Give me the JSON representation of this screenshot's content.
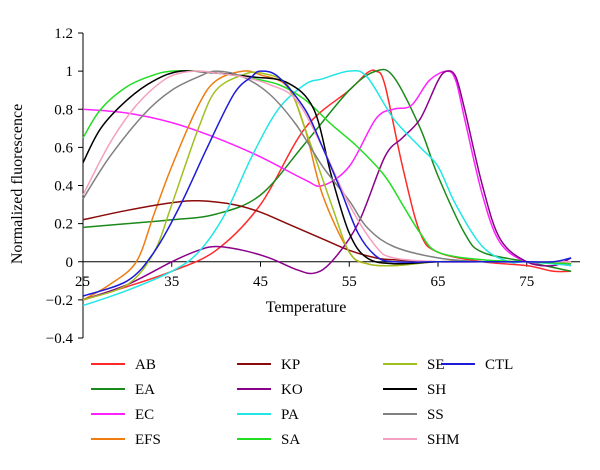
{
  "chart_data": {
    "type": "line",
    "title": "",
    "xlabel": "Temperature",
    "ylabel": "Normalized fluorescence",
    "xlim": [
      25,
      81
    ],
    "ylim": [
      -0.4,
      1.2
    ],
    "xticks": [
      "25",
      "35",
      "45",
      "55",
      "65",
      "75"
    ],
    "xtick_values": [
      25,
      35,
      45,
      55,
      65,
      75
    ],
    "yticks": [
      "1.2",
      "1",
      "0.8",
      "0.6",
      "0.4",
      "0.2",
      "0",
      "−0.2",
      "−0.4"
    ],
    "ytick_values": [
      1.2,
      1,
      0.8,
      0.6,
      0.4,
      0.2,
      0,
      -0.2,
      -0.4
    ],
    "grid": false,
    "legend_position": "bottom",
    "series": [
      {
        "name": "AB",
        "color": "#ff2a2a",
        "points": [
          [
            25,
            -0.2
          ],
          [
            30,
            -0.13
          ],
          [
            35,
            -0.05
          ],
          [
            40,
            0.06
          ],
          [
            45,
            0.3
          ],
          [
            50,
            0.7
          ],
          [
            55,
            0.9
          ],
          [
            57,
            0.99
          ],
          [
            58,
            1.0
          ],
          [
            59,
            0.93
          ],
          [
            61,
            0.5
          ],
          [
            63,
            0.15
          ],
          [
            65,
            0.05
          ],
          [
            70,
            0.0
          ],
          [
            75,
            -0.02
          ],
          [
            78,
            -0.05
          ],
          [
            80,
            -0.05
          ]
        ]
      },
      {
        "name": "EA",
        "color": "#1a8a1a",
        "points": [
          [
            25,
            0.18
          ],
          [
            30,
            0.2
          ],
          [
            35,
            0.22
          ],
          [
            40,
            0.25
          ],
          [
            45,
            0.35
          ],
          [
            50,
            0.62
          ],
          [
            55,
            0.9
          ],
          [
            58,
            1.0
          ],
          [
            60,
            0.97
          ],
          [
            63,
            0.7
          ],
          [
            65,
            0.45
          ],
          [
            68,
            0.15
          ],
          [
            70,
            0.05
          ],
          [
            75,
            0.0
          ],
          [
            78,
            -0.03
          ],
          [
            80,
            -0.05
          ]
        ]
      },
      {
        "name": "EC",
        "color": "#ff22ff",
        "points": [
          [
            25,
            0.8
          ],
          [
            30,
            0.78
          ],
          [
            35,
            0.73
          ],
          [
            40,
            0.65
          ],
          [
            45,
            0.55
          ],
          [
            50,
            0.43
          ],
          [
            52,
            0.4
          ],
          [
            55,
            0.5
          ],
          [
            58,
            0.75
          ],
          [
            60,
            0.8
          ],
          [
            62,
            0.82
          ],
          [
            64,
            0.95
          ],
          [
            66,
            1.0
          ],
          [
            67,
            0.95
          ],
          [
            68,
            0.75
          ],
          [
            70,
            0.35
          ],
          [
            72,
            0.1
          ],
          [
            75,
            0.0
          ],
          [
            78,
            0.0
          ],
          [
            80,
            -0.02
          ]
        ]
      },
      {
        "name": "EFS",
        "color": "#f07c10",
        "points": [
          [
            25,
            -0.2
          ],
          [
            28,
            -0.12
          ],
          [
            31,
            0.0
          ],
          [
            33,
            0.25
          ],
          [
            35,
            0.5
          ],
          [
            38,
            0.82
          ],
          [
            40,
            0.95
          ],
          [
            43,
            1.0
          ],
          [
            45,
            0.98
          ],
          [
            48,
            0.92
          ],
          [
            50,
            0.7
          ],
          [
            52,
            0.35
          ],
          [
            55,
            0.05
          ],
          [
            57,
            -0.01
          ],
          [
            60,
            -0.02
          ],
          [
            65,
            0.0
          ],
          [
            70,
            0.0
          ],
          [
            75,
            0.0
          ],
          [
            80,
            -0.01
          ]
        ]
      },
      {
        "name": "KP",
        "color": "#8b0a0a",
        "points": [
          [
            25,
            0.22
          ],
          [
            30,
            0.27
          ],
          [
            35,
            0.31
          ],
          [
            38,
            0.32
          ],
          [
            42,
            0.3
          ],
          [
            45,
            0.26
          ],
          [
            48,
            0.2
          ],
          [
            52,
            0.12
          ],
          [
            55,
            0.06
          ],
          [
            58,
            0.02
          ],
          [
            60,
            0.01
          ],
          [
            65,
            0.0
          ],
          [
            70,
            0.0
          ],
          [
            75,
            0.0
          ],
          [
            80,
            0.0
          ]
        ]
      },
      {
        "name": "KO",
        "color": "#8b008b",
        "points": [
          [
            25,
            -0.2
          ],
          [
            30,
            -0.12
          ],
          [
            35,
            0.0
          ],
          [
            38,
            0.06
          ],
          [
            40,
            0.08
          ],
          [
            43,
            0.06
          ],
          [
            46,
            0.02
          ],
          [
            49,
            -0.04
          ],
          [
            51,
            -0.06
          ],
          [
            53,
            0.0
          ],
          [
            56,
            0.2
          ],
          [
            59,
            0.55
          ],
          [
            61,
            0.65
          ],
          [
            63,
            0.75
          ],
          [
            65,
            0.95
          ],
          [
            66,
            1.0
          ],
          [
            67,
            0.97
          ],
          [
            68,
            0.8
          ],
          [
            70,
            0.4
          ],
          [
            72,
            0.12
          ],
          [
            75,
            0.0
          ],
          [
            78,
            -0.02
          ],
          [
            80,
            0.02
          ]
        ]
      },
      {
        "name": "PA",
        "color": "#22e6e6",
        "points": [
          [
            25,
            -0.23
          ],
          [
            30,
            -0.15
          ],
          [
            35,
            -0.05
          ],
          [
            38,
            0.05
          ],
          [
            41,
            0.25
          ],
          [
            44,
            0.55
          ],
          [
            47,
            0.8
          ],
          [
            50,
            0.93
          ],
          [
            52,
            0.96
          ],
          [
            55,
            1.0
          ],
          [
            57,
            0.97
          ],
          [
            60,
            0.75
          ],
          [
            63,
            0.6
          ],
          [
            65,
            0.5
          ],
          [
            67,
            0.3
          ],
          [
            70,
            0.08
          ],
          [
            73,
            0.0
          ],
          [
            75,
            0.0
          ],
          [
            80,
            -0.02
          ]
        ]
      },
      {
        "name": "SA",
        "color": "#22dd22",
        "points": [
          [
            25,
            0.65
          ],
          [
            27,
            0.8
          ],
          [
            30,
            0.92
          ],
          [
            33,
            0.98
          ],
          [
            35,
            1.0
          ],
          [
            38,
            1.0
          ],
          [
            40,
            0.99
          ],
          [
            43,
            0.97
          ],
          [
            47,
            0.93
          ],
          [
            50,
            0.85
          ],
          [
            53,
            0.72
          ],
          [
            56,
            0.6
          ],
          [
            59,
            0.45
          ],
          [
            61,
            0.3
          ],
          [
            63,
            0.15
          ],
          [
            65,
            0.05
          ],
          [
            70,
            0.01
          ],
          [
            75,
            0.0
          ],
          [
            80,
            -0.01
          ]
        ]
      },
      {
        "name": "SE",
        "color": "#a0c020",
        "points": [
          [
            25,
            -0.2
          ],
          [
            30,
            -0.12
          ],
          [
            33,
            0.05
          ],
          [
            35,
            0.3
          ],
          [
            38,
            0.7
          ],
          [
            40,
            0.9
          ],
          [
            43,
            0.98
          ],
          [
            45,
            0.99
          ],
          [
            48,
            0.93
          ],
          [
            50,
            0.7
          ],
          [
            53,
            0.3
          ],
          [
            55,
            0.05
          ],
          [
            57,
            -0.01
          ],
          [
            60,
            -0.02
          ],
          [
            65,
            0.0
          ],
          [
            70,
            0.0
          ],
          [
            75,
            0.0
          ],
          [
            80,
            0.0
          ]
        ]
      },
      {
        "name": "SH",
        "color": "#000000",
        "points": [
          [
            25,
            0.52
          ],
          [
            27,
            0.7
          ],
          [
            30,
            0.85
          ],
          [
            33,
            0.95
          ],
          [
            36,
            1.0
          ],
          [
            40,
            0.99
          ],
          [
            44,
            0.97
          ],
          [
            48,
            0.94
          ],
          [
            51,
            0.8
          ],
          [
            53,
            0.45
          ],
          [
            55,
            0.15
          ],
          [
            57,
            0.02
          ],
          [
            60,
            -0.01
          ],
          [
            65,
            0.0
          ],
          [
            70,
            0.0
          ],
          [
            75,
            0.0
          ],
          [
            80,
            0.0
          ]
        ]
      },
      {
        "name": "SS",
        "color": "#808080",
        "points": [
          [
            25,
            0.33
          ],
          [
            28,
            0.55
          ],
          [
            32,
            0.78
          ],
          [
            35,
            0.9
          ],
          [
            38,
            0.97
          ],
          [
            40,
            1.0
          ],
          [
            43,
            0.97
          ],
          [
            46,
            0.88
          ],
          [
            49,
            0.72
          ],
          [
            52,
            0.5
          ],
          [
            55,
            0.32
          ],
          [
            57,
            0.18
          ],
          [
            60,
            0.08
          ],
          [
            65,
            0.02
          ],
          [
            70,
            0.0
          ],
          [
            75,
            0.0
          ],
          [
            80,
            0.0
          ]
        ]
      },
      {
        "name": "SHM",
        "color": "#f4a0c0",
        "points": [
          [
            25,
            0.35
          ],
          [
            28,
            0.62
          ],
          [
            31,
            0.82
          ],
          [
            34,
            0.95
          ],
          [
            36,
            0.99
          ],
          [
            38,
            1.0
          ],
          [
            40,
            0.99
          ],
          [
            43,
            0.97
          ],
          [
            46,
            0.93
          ],
          [
            49,
            0.85
          ],
          [
            52,
            0.6
          ],
          [
            55,
            0.3
          ],
          [
            58,
            0.08
          ],
          [
            60,
            0.02
          ],
          [
            65,
            0.0
          ],
          [
            70,
            0.0
          ],
          [
            75,
            0.0
          ],
          [
            80,
            0.0
          ]
        ]
      },
      {
        "name": "CTL",
        "color": "#1c1cd8",
        "points": [
          [
            25,
            -0.18
          ],
          [
            30,
            -0.1
          ],
          [
            33,
            0.05
          ],
          [
            36,
            0.3
          ],
          [
            39,
            0.6
          ],
          [
            42,
            0.88
          ],
          [
            44,
            0.97
          ],
          [
            45,
            1.0
          ],
          [
            47,
            0.97
          ],
          [
            50,
            0.8
          ],
          [
            52,
            0.6
          ],
          [
            54,
            0.38
          ],
          [
            56,
            0.15
          ],
          [
            58,
            0.03
          ],
          [
            60,
            0.0
          ],
          [
            65,
            0.0
          ],
          [
            70,
            0.0
          ],
          [
            75,
            0.0
          ],
          [
            78,
            0.0
          ],
          [
            80,
            0.02
          ]
        ]
      }
    ]
  }
}
